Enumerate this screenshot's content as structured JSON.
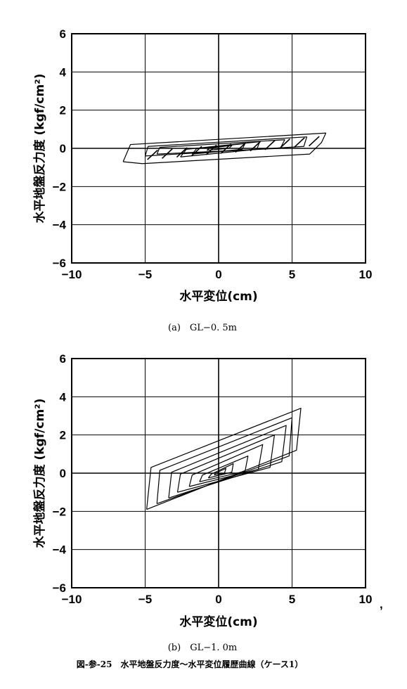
{
  "chart_data": [
    {
      "type": "line",
      "caption": "(a)　GL−0. 5m",
      "xlabel": "水平変位(cm)",
      "ylabel": "水平地盤反力度 (kgf/cm²)",
      "xlim": [
        -10,
        10
      ],
      "ylim": [
        -6,
        6
      ],
      "xticks": [
        "−10",
        "−5",
        "0",
        "5",
        "10"
      ],
      "yticks": [
        "6",
        "4",
        "2",
        "0",
        "−2",
        "−4",
        "−6"
      ],
      "grid": true,
      "series": [
        {
          "loops": [
            [
              [
                -6.5,
                -0.7
              ],
              [
                -6.0,
                0.2
              ],
              [
                7.3,
                0.8
              ],
              [
                7.0,
                0.3
              ],
              [
                6.2,
                -0.3
              ],
              [
                -5.2,
                -0.8
              ],
              [
                -6.5,
                -0.7
              ]
            ],
            [
              [
                -5.0,
                -0.4
              ],
              [
                -4.8,
                0.1
              ],
              [
                6.0,
                0.6
              ],
              [
                5.8,
                0.1
              ],
              [
                -5.0,
                -0.4
              ]
            ],
            [
              [
                -4.2,
                -0.3
              ],
              [
                -4.0,
                0.05
              ],
              [
                4.5,
                0.45
              ],
              [
                4.2,
                0.0
              ],
              [
                -4.2,
                -0.3
              ]
            ],
            [
              [
                -2.6,
                -0.45
              ],
              [
                -2.2,
                -0.05
              ],
              [
                2.8,
                0.35
              ],
              [
                2.6,
                -0.05
              ],
              [
                -2.6,
                -0.45
              ]
            ],
            [
              [
                -1.8,
                -0.3
              ],
              [
                -1.5,
                -0.02
              ],
              [
                1.8,
                0.25
              ],
              [
                1.6,
                -0.05
              ],
              [
                -1.8,
                -0.3
              ]
            ],
            [
              [
                -0.8,
                -0.1
              ],
              [
                -0.6,
                0.02
              ],
              [
                0.9,
                0.15
              ],
              [
                0.7,
                0.0
              ],
              [
                -0.8,
                -0.1
              ]
            ]
          ],
          "hatch": [
            -4.5,
            -3.5,
            -2.5,
            -1.5,
            -0.5,
            0.5,
            1.5,
            2.5,
            3.5,
            4.5,
            5.5,
            6.5
          ]
        }
      ]
    },
    {
      "type": "line",
      "caption": "(b)　GL−1. 0m",
      "xlabel": "水平変位(cm)",
      "ylabel": "水平地盤反力度 (kgf/cm²)",
      "xlim": [
        -10,
        10
      ],
      "ylim": [
        -6,
        6
      ],
      "xticks": [
        "−10",
        "−5",
        "0",
        "5",
        "10"
      ],
      "yticks": [
        "6",
        "4",
        "2",
        "0",
        "−2",
        "−4",
        "−6"
      ],
      "grid": true,
      "series": [
        {
          "loops": [
            [
              [
                -4.9,
                -1.9
              ],
              [
                -4.6,
                0.3
              ],
              [
                5.6,
                3.4
              ],
              [
                5.3,
                1.2
              ],
              [
                -4.9,
                -1.9
              ]
            ],
            [
              [
                -4.2,
                -1.6
              ],
              [
                -4.0,
                0.15
              ],
              [
                5.0,
                2.9
              ],
              [
                4.8,
                0.9
              ],
              [
                -4.2,
                -1.6
              ]
            ],
            [
              [
                -3.4,
                -1.3
              ],
              [
                -3.2,
                0.05
              ],
              [
                4.6,
                2.5
              ],
              [
                4.3,
                0.6
              ],
              [
                -3.4,
                -1.3
              ]
            ],
            [
              [
                -2.8,
                -1.0
              ],
              [
                -2.6,
                -0.05
              ],
              [
                3.8,
                2.0
              ],
              [
                3.5,
                0.3
              ],
              [
                -2.8,
                -1.0
              ]
            ],
            [
              [
                -2.0,
                -0.7
              ],
              [
                -1.8,
                -0.1
              ],
              [
                3.0,
                1.5
              ],
              [
                2.7,
                0.2
              ],
              [
                -2.0,
                -0.7
              ]
            ],
            [
              [
                -1.3,
                -0.45
              ],
              [
                -1.1,
                -0.1
              ],
              [
                2.0,
                0.9
              ],
              [
                1.8,
                0.1
              ],
              [
                -1.3,
                -0.45
              ]
            ],
            [
              [
                -0.7,
                -0.25
              ],
              [
                -0.5,
                -0.05
              ],
              [
                1.0,
                0.5
              ],
              [
                0.9,
                0.05
              ],
              [
                -0.7,
                -0.25
              ]
            ],
            [
              [
                -0.3,
                -0.1
              ],
              [
                -0.2,
                0.0
              ],
              [
                0.5,
                0.25
              ],
              [
                0.4,
                0.0
              ],
              [
                -0.3,
                -0.1
              ]
            ]
          ],
          "hatch": []
        }
      ]
    }
  ],
  "figure_caption": "図-参-25　水平地盤反力度〜水平変位履歴曲線（ケース1）",
  "stray_mark": ","
}
